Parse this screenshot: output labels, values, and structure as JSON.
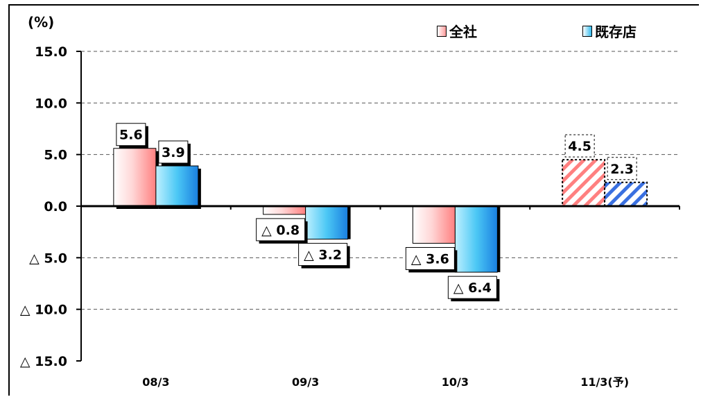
{
  "chart_data": {
    "type": "bar",
    "unit_label": "(%)",
    "categories": [
      "08/3",
      "09/3",
      "10/3",
      "11/3(予)"
    ],
    "series": [
      {
        "name": "全社",
        "values": [
          5.6,
          -0.8,
          -3.6,
          4.5
        ],
        "color": "#ff9a9a",
        "labels": [
          "5.6",
          "△ 0.8",
          "△ 3.6",
          "4.5"
        ]
      },
      {
        "name": "既存店",
        "values": [
          3.9,
          -3.2,
          -6.4,
          2.3
        ],
        "color": "#33bbee",
        "labels": [
          "3.9",
          "△ 3.2",
          "△ 6.4",
          "2.3"
        ]
      }
    ],
    "forecast_category_index": 3,
    "y_ticks": [
      15,
      10,
      5,
      0,
      -5,
      -10,
      -15
    ],
    "y_tick_labels": [
      "15.0",
      "10.0",
      "5.0",
      "0.0",
      "△ 5.0",
      "△ 10.0",
      "△ 15.0"
    ],
    "ylim": [
      -15,
      15
    ],
    "grid": "dashed horizontal",
    "legend": "top-right"
  }
}
